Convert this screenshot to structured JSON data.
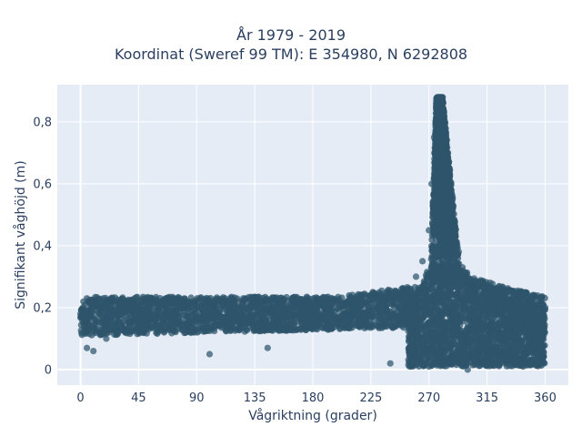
{
  "chart_data": {
    "type": "scatter",
    "title_lines": [
      "År 1979 - 2019",
      "Koordinat (Sweref 99 TM): E 354980, N 6292808"
    ],
    "xlabel": "Vågriktning (grader)",
    "ylabel": "Signifikant våghöjd (m)",
    "xlim": [
      -18,
      378
    ],
    "ylim": [
      -0.05,
      0.92
    ],
    "xticks": [
      0,
      45,
      90,
      135,
      180,
      225,
      270,
      315,
      360
    ],
    "xtick_labels": [
      "0",
      "45",
      "90",
      "135",
      "180",
      "225",
      "270",
      "315",
      "360"
    ],
    "yticks": [
      0,
      0.2,
      0.4,
      0.6,
      0.8
    ],
    "ytick_labels": [
      "0",
      "0,2",
      "0,4",
      "0,6",
      "0,8"
    ],
    "grid": true,
    "plot_background": "#e5ecf6",
    "marker_color": "#2e546b",
    "series": [
      {
        "description_points": [
          [
            0,
            0.18
          ],
          [
            5,
            0.23
          ],
          [
            10,
            0.14
          ],
          [
            15,
            0.2
          ],
          [
            20,
            0.1
          ],
          [
            25,
            0.22
          ],
          [
            30,
            0.16
          ],
          [
            40,
            0.19
          ],
          [
            50,
            0.17
          ],
          [
            60,
            0.21
          ],
          [
            70,
            0.13
          ],
          [
            80,
            0.2
          ],
          [
            90,
            0.16
          ],
          [
            100,
            0.19
          ],
          [
            110,
            0.14
          ],
          [
            120,
            0.2
          ],
          [
            130,
            0.17
          ],
          [
            140,
            0.21
          ],
          [
            150,
            0.15
          ],
          [
            160,
            0.19
          ],
          [
            170,
            0.18
          ],
          [
            180,
            0.2
          ],
          [
            190,
            0.16
          ],
          [
            200,
            0.21
          ],
          [
            210,
            0.18
          ],
          [
            220,
            0.22
          ],
          [
            230,
            0.2
          ],
          [
            240,
            0.23
          ],
          [
            250,
            0.26
          ],
          [
            260,
            0.3
          ],
          [
            265,
            0.35
          ],
          [
            270,
            0.45
          ],
          [
            272,
            0.6
          ],
          [
            274,
            0.75
          ],
          [
            276,
            0.85
          ],
          [
            278,
            0.88
          ],
          [
            280,
            0.8
          ],
          [
            282,
            0.7
          ],
          [
            285,
            0.6
          ],
          [
            288,
            0.5
          ],
          [
            290,
            0.45
          ],
          [
            293,
            0.38
          ],
          [
            296,
            0.33
          ],
          [
            300,
            0.3
          ],
          [
            310,
            0.28
          ],
          [
            320,
            0.26
          ],
          [
            330,
            0.25
          ],
          [
            340,
            0.24
          ],
          [
            350,
            0.23
          ],
          [
            360,
            0.2
          ],
          [
            5,
            0.07
          ],
          [
            10,
            0.06
          ],
          [
            100,
            0.05
          ],
          [
            145,
            0.07
          ],
          [
            240,
            0.02
          ],
          [
            255,
            0.01
          ],
          [
            270,
            0.01
          ],
          [
            300,
            0.0
          ],
          [
            330,
            0.02
          ],
          [
            355,
            0.06
          ]
        ]
      }
    ]
  }
}
